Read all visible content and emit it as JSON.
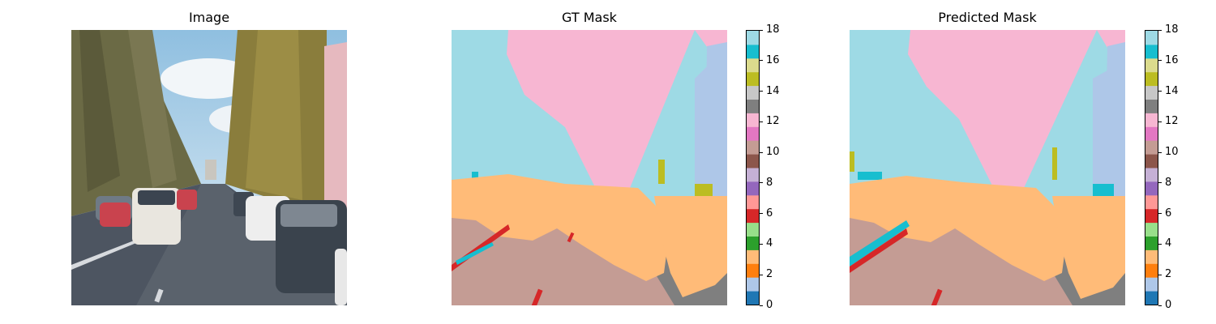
{
  "panels": {
    "image": {
      "title": "Image"
    },
    "gt": {
      "title": "GT Mask"
    },
    "pred": {
      "title": "Predicted Mask"
    }
  },
  "colorbar": {
    "min": 0,
    "max": 18,
    "ticks": [
      "0",
      "2",
      "4",
      "6",
      "8",
      "10",
      "12",
      "14",
      "16",
      "18"
    ],
    "colors": [
      "#1f77b4",
      "#aec7e8",
      "#ff7f0e",
      "#ffbb78",
      "#2ca02c",
      "#98df8a",
      "#d62728",
      "#ff9896",
      "#9467bd",
      "#c5b0d5",
      "#8c564b",
      "#c49c94",
      "#e377c2",
      "#f7b6d2",
      "#7f7f7f",
      "#c7c7c7",
      "#bcbd22",
      "#dbdb8d",
      "#17becf",
      "#9edae5"
    ]
  }
}
